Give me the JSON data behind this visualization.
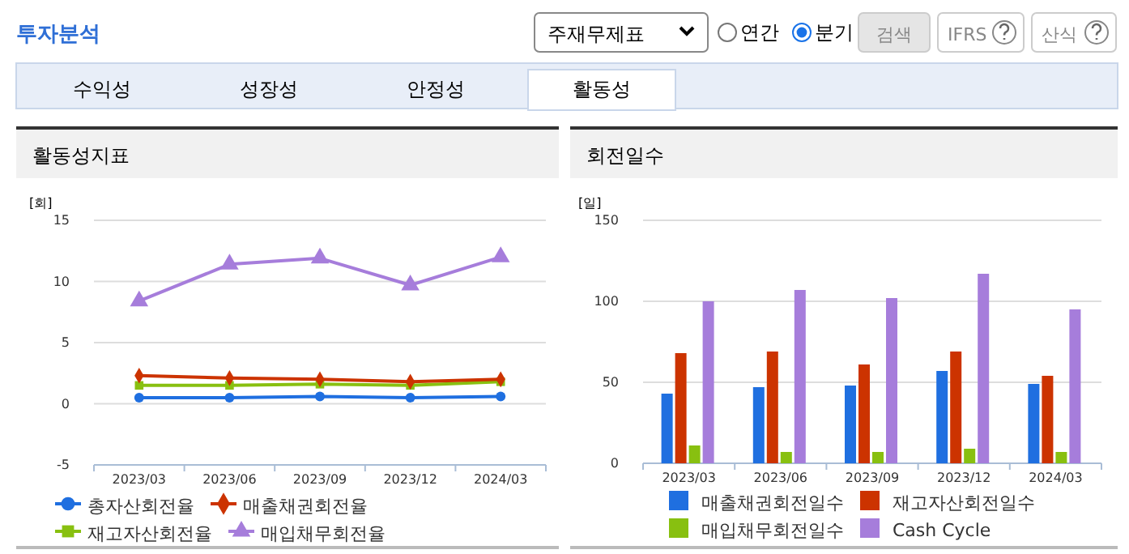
{
  "chart_data": [
    {
      "type": "other",
      "title": "투자분석",
      "annotations": [
        "주재무제표",
        "연간",
        "분기",
        "검색",
        "IFRS",
        "산식",
        "수익성",
        "성장성",
        "안정성",
        "활동성"
      ]
    },
    {
      "type": "line",
      "title": "활동성지표",
      "ylabel": "[회]",
      "categories": [
        "2023/03",
        "2023/06",
        "2023/09",
        "2023/12",
        "2024/03"
      ],
      "ylim": [
        -5,
        15
      ],
      "yticks": [
        -5,
        0,
        5,
        10,
        15
      ],
      "grid": "y",
      "legend": "bottom",
      "series": [
        {
          "name": "총자산회전율",
          "color": "#1f6fe0",
          "marker": "circle",
          "values": [
            0.5,
            0.5,
            0.6,
            0.5,
            0.6
          ]
        },
        {
          "name": "매출채권회전율",
          "color": "#cc3300",
          "marker": "diamond",
          "values": [
            2.3,
            2.1,
            2.0,
            1.8,
            2.0
          ]
        },
        {
          "name": "재고자산회전율",
          "color": "#88c010",
          "marker": "square",
          "values": [
            1.5,
            1.5,
            1.6,
            1.5,
            1.8
          ]
        },
        {
          "name": "매입채무회전율",
          "color": "#a67ddb",
          "marker": "triangle",
          "values": [
            8.4,
            11.4,
            11.9,
            9.7,
            12.0
          ]
        }
      ]
    },
    {
      "type": "bar",
      "title": "회전일수",
      "ylabel": "[일]",
      "categories": [
        "2023/03",
        "2023/06",
        "2023/09",
        "2023/12",
        "2024/03"
      ],
      "ylim": [
        0,
        150
      ],
      "yticks": [
        0,
        50,
        100,
        150
      ],
      "grid": "y",
      "legend": "bottom",
      "series": [
        {
          "name": "매출채권회전일수",
          "color": "#1f6fe0",
          "values": [
            43,
            47,
            48,
            57,
            49
          ]
        },
        {
          "name": "재고자산회전일수",
          "color": "#cc3300",
          "values": [
            68,
            69,
            61,
            69,
            54
          ]
        },
        {
          "name": "매입채무회전일수",
          "color": "#88c010",
          "values": [
            11,
            7,
            7,
            9,
            7
          ]
        },
        {
          "name": "Cash Cycle",
          "color": "#a67ddb",
          "values": [
            100,
            107,
            102,
            117,
            95
          ]
        }
      ]
    }
  ]
}
